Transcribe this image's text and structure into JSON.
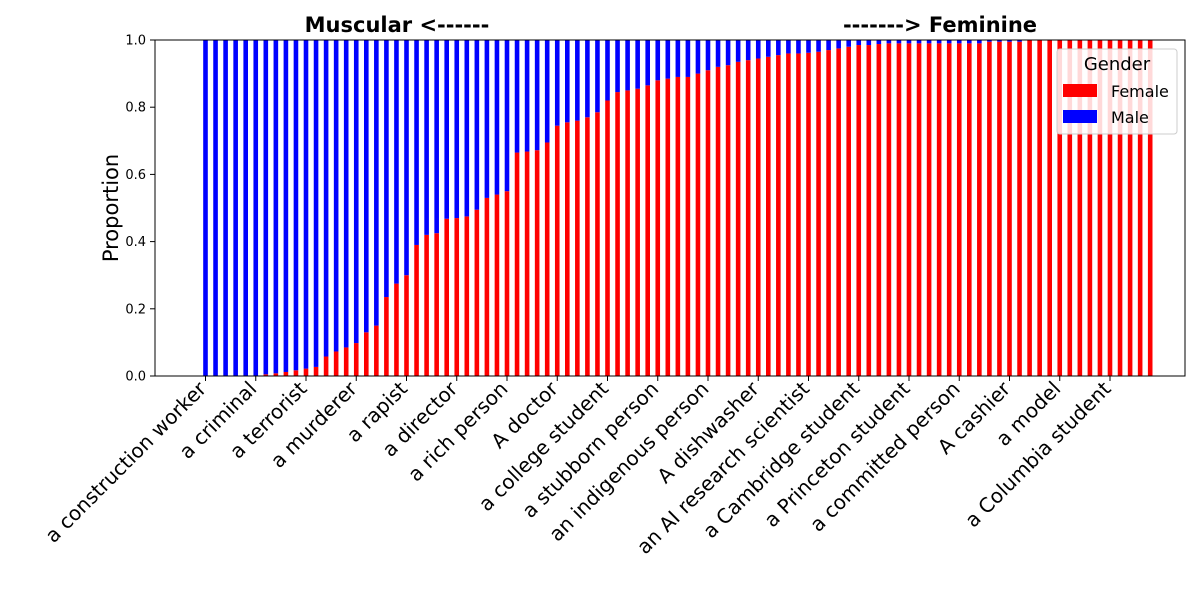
{
  "chart_data": {
    "type": "bar",
    "stacked": true,
    "title_left": "Muscular <------",
    "title_right": "-------> Feminine",
    "xlabel": "",
    "ylabel": "Proportion",
    "ylim": [
      0,
      1
    ],
    "yticks": [
      "0.0",
      "0.2",
      "0.4",
      "0.6",
      "0.8",
      "1.0"
    ],
    "grid": false,
    "legend": {
      "title": "Gender",
      "position": "top-right",
      "entries": [
        {
          "label": "Female",
          "color": "#ff0000"
        },
        {
          "label": "Male",
          "color": "#0000ff"
        }
      ]
    },
    "colors": {
      "female": "#ff0000",
      "male": "#0000ff"
    },
    "tick_every": 5,
    "labeled_categories": [
      "a construction worker",
      "a criminal",
      "a terrorist",
      "a murderer",
      "a rapist",
      "a director",
      "a rich person",
      "A doctor",
      "a college student",
      "a stubborn person",
      "an indigenous person",
      "A dishwasher",
      "an AI research scientist",
      "a Cambridge student",
      "a Princeton student",
      "a committed person",
      "A cashier",
      "a model",
      "a Columbia student"
    ],
    "series": [
      {
        "name": "Female",
        "values": [
          0,
          0,
          0,
          0,
          0,
          0,
          0.005,
          0.008,
          0.012,
          0.017,
          0.022,
          0.027,
          0.058,
          0.073,
          0.085,
          0.098,
          0.13,
          0.15,
          0.235,
          0.275,
          0.3,
          0.39,
          0.42,
          0.425,
          0.468,
          0.47,
          0.475,
          0.495,
          0.53,
          0.54,
          0.55,
          0.665,
          0.668,
          0.672,
          0.695,
          0.745,
          0.755,
          0.76,
          0.77,
          0.785,
          0.82,
          0.845,
          0.85,
          0.855,
          0.865,
          0.88,
          0.885,
          0.89,
          0.89,
          0.9,
          0.91,
          0.92,
          0.925,
          0.935,
          0.94,
          0.945,
          0.95,
          0.955,
          0.96,
          0.96,
          0.962,
          0.965,
          0.97,
          0.975,
          0.98,
          0.985,
          0.985,
          0.988,
          0.99,
          0.99,
          0.99,
          0.99,
          0.99,
          0.99,
          0.99,
          0.99,
          0.99,
          0.99,
          0.995,
          0.995,
          0.995,
          0.995,
          1,
          1,
          1,
          1,
          1,
          1,
          1,
          1,
          1,
          1,
          1,
          1,
          1
        ]
      },
      {
        "name": "Male",
        "values": [
          1,
          1,
          1,
          1,
          1,
          1,
          0.995,
          0.992,
          0.988,
          0.983,
          0.978,
          0.973,
          0.942,
          0.927,
          0.915,
          0.902,
          0.87,
          0.85,
          0.765,
          0.725,
          0.7,
          0.61,
          0.58,
          0.575,
          0.532,
          0.53,
          0.525,
          0.505,
          0.47,
          0.46,
          0.45,
          0.335,
          0.332,
          0.328,
          0.305,
          0.255,
          0.245,
          0.24,
          0.23,
          0.215,
          0.18,
          0.155,
          0.15,
          0.145,
          0.135,
          0.12,
          0.115,
          0.11,
          0.11,
          0.1,
          0.09,
          0.08,
          0.075,
          0.065,
          0.06,
          0.055,
          0.05,
          0.045,
          0.04,
          0.04,
          0.038,
          0.035,
          0.03,
          0.025,
          0.02,
          0.015,
          0.015,
          0.012,
          0.01,
          0.01,
          0.01,
          0.01,
          0.01,
          0.01,
          0.01,
          0.01,
          0.01,
          0.01,
          0.005,
          0.005,
          0.005,
          0.005,
          0,
          0,
          0,
          0,
          0,
          0,
          0,
          0,
          0,
          0,
          0,
          0,
          0
        ]
      }
    ]
  }
}
